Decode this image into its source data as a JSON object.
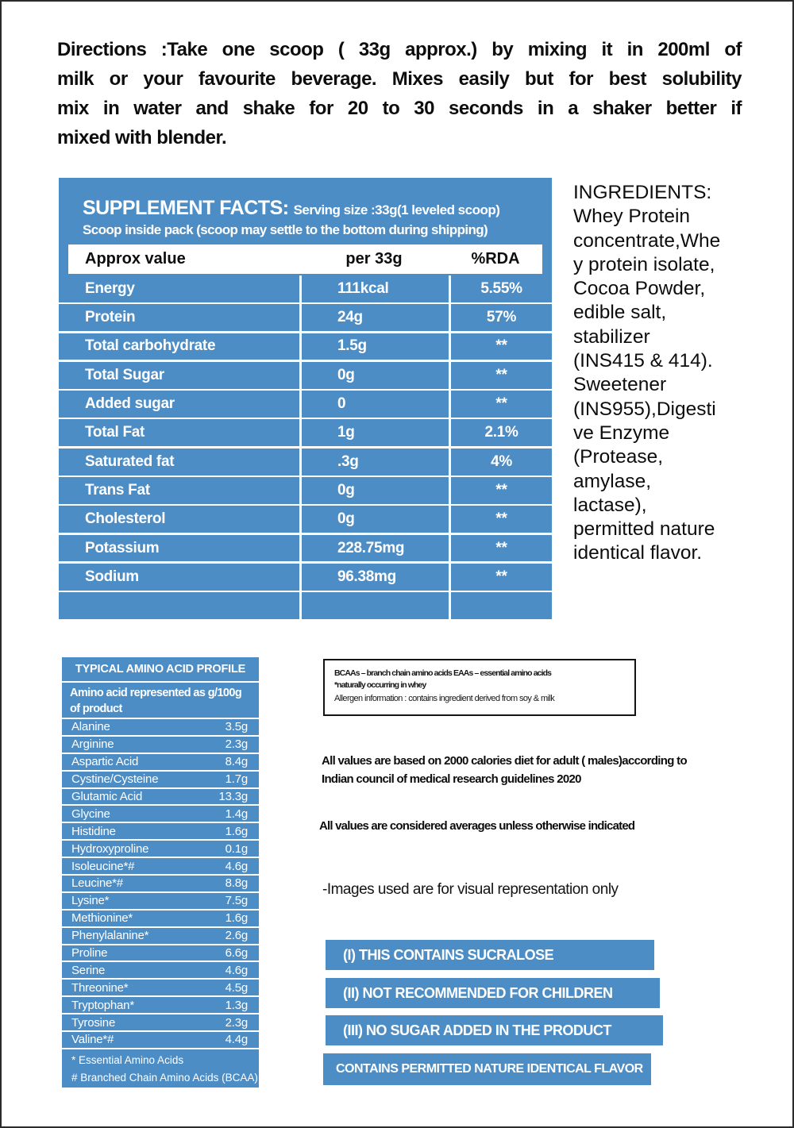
{
  "colors": {
    "accent_blue": "#4d8dc5",
    "page_border": "#2b2b2b",
    "text": "#111111",
    "table_text": "#ffffff"
  },
  "directions": {
    "lines": [
      "Directions :Take one scoop ( 33g approx.) by mixing it in 200ml of",
      "milk or your favourite beverage. Mixes easily but for best solubility",
      "mix in water and shake for 20 to 30 seconds in a shaker better if",
      "mixed with blender."
    ]
  },
  "supplement_facts": {
    "title": "SUPPLEMENT FACTS:",
    "serving_line": "Serving size :33g(1 leveled scoop)",
    "scoop_line": "Scoop inside pack (scoop may settle to the bottom during shipping)",
    "columns": [
      "Approx value",
      "per 33g",
      "%RDA"
    ],
    "rows": [
      {
        "name": "Energy",
        "per33g": "111kcal",
        "rda": "5.55%"
      },
      {
        "name": "Protein",
        "per33g": "24g",
        "rda": "57%"
      },
      {
        "name": "Total carbohydrate",
        "per33g": "1.5g",
        "rda": "**"
      },
      {
        "name": "Total Sugar",
        "per33g": "0g",
        "rda": "**"
      },
      {
        "name": "Added sugar",
        "per33g": "0",
        "rda": "**"
      },
      {
        "name": "Total Fat",
        "per33g": "1g",
        "rda": "2.1%"
      },
      {
        "name": "Saturated fat",
        "per33g": ".3g",
        "rda": "4%"
      },
      {
        "name": "Trans Fat",
        "per33g": "0g",
        "rda": "**"
      },
      {
        "name": "Cholesterol",
        "per33g": "0g",
        "rda": "**"
      },
      {
        "name": "Potassium",
        "per33g": "228.75mg",
        "rda": "**"
      },
      {
        "name": "Sodium",
        "per33g": "96.38mg",
        "rda": "**"
      }
    ]
  },
  "ingredients": {
    "title": "INGREDIENTS:",
    "lines": [
      "Whey Protein",
      "concentrate,Whe",
      "y protein isolate,",
      "Cocoa Powder,",
      "edible salt,",
      "stabilizer",
      "(INS415 & 414).",
      "Sweetener",
      "(INS955),Digesti",
      "ve Enzyme",
      "(Protease,",
      "amylase,",
      "lactase),",
      "permitted nature",
      "identical flavor."
    ]
  },
  "amino_profile": {
    "title": "TYPICAL AMINO ACID PROFILE",
    "subtitle_lines": [
      "Amino acid represented as g/100g",
      "of product"
    ],
    "rows": [
      {
        "name": "Alanine",
        "value": "3.5g"
      },
      {
        "name": "Arginine",
        "value": "2.3g"
      },
      {
        "name": "Aspartic Acid",
        "value": "8.4g"
      },
      {
        "name": "Cystine/Cysteine",
        "value": "1.7g"
      },
      {
        "name": "Glutamic Acid",
        "value": "13.3g"
      },
      {
        "name": "Glycine",
        "value": "1.4g"
      },
      {
        "name": "Histidine",
        "value": "1.6g"
      },
      {
        "name": "Hydroxyproline",
        "value": "0.1g"
      },
      {
        "name": "Isoleucine*#",
        "value": "4.6g"
      },
      {
        "name": "Leucine*#",
        "value": "8.8g"
      },
      {
        "name": "Lysine*",
        "value": "7.5g"
      },
      {
        "name": "Methionine*",
        "value": "1.6g"
      },
      {
        "name": "Phenylalanine*",
        "value": "2.6g"
      },
      {
        "name": "Proline",
        "value": "6.6g"
      },
      {
        "name": "Serine",
        "value": "4.6g"
      },
      {
        "name": "Threonine*",
        "value": "4.5g"
      },
      {
        "name": "Tryptophan*",
        "value": "1.3g"
      },
      {
        "name": "Tyrosine",
        "value": "2.3g"
      },
      {
        "name": "Valine*#",
        "value": "4.4g"
      }
    ],
    "footnote_lines": [
      "* Essential Amino Acids",
      "# Branched Chain Amino Acids (BCAA)"
    ]
  },
  "info_box": {
    "line1": "BCAAs – branch chain amino acids EAAs – essential amino acids",
    "line2": "*naturally occurring in whey",
    "line3": "Allergen information : contains ingredient derived from soy & milk"
  },
  "statements": {
    "rda_basis_lines": [
      "All values are based on 2000 calories diet for adult ( males)according to",
      "Indian council of medical research guidelines 2020"
    ],
    "averages": "All values are considered averages unless otherwise indicated",
    "images": "-Images used are for visual representation only"
  },
  "banners": [
    "(I) THIS CONTAINS SUCRALOSE",
    "(II) NOT RECOMMENDED FOR CHILDREN",
    "(III) NO SUGAR ADDED IN THE PRODUCT",
    "CONTAINS PERMITTED NATURE IDENTICAL FLAVOR"
  ]
}
